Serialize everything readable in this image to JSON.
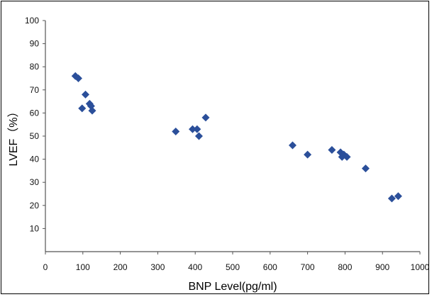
{
  "chart_data": {
    "type": "scatter",
    "xlabel": "BNP Level(pg/ml)",
    "ylabel": "LVEF（%）",
    "xlim": [
      0,
      1000
    ],
    "ylim": [
      0,
      100
    ],
    "x_ticks": [
      0,
      100,
      200,
      300,
      400,
      500,
      600,
      700,
      800,
      900,
      1000
    ],
    "y_ticks": [
      10,
      20,
      30,
      40,
      50,
      60,
      70,
      80,
      90,
      100
    ],
    "x_tick_labels": [
      "0",
      "100",
      "200",
      "300",
      "400",
      "500",
      "600",
      "700",
      "800",
      "900",
      "1000"
    ],
    "y_tick_labels": [
      "10",
      "20",
      "30",
      "40",
      "50",
      "60",
      "70",
      "80",
      "90",
      "100"
    ],
    "grid": false,
    "legend": "none",
    "marker": "diamond",
    "color": "#2b4f9a",
    "series": [
      {
        "points": [
          [
            80,
            76
          ],
          [
            88,
            75
          ],
          [
            98,
            62
          ],
          [
            107,
            68
          ],
          [
            118,
            64
          ],
          [
            122,
            63
          ],
          [
            125,
            61
          ],
          [
            348,
            52
          ],
          [
            393,
            53
          ],
          [
            405,
            53
          ],
          [
            410,
            50
          ],
          [
            428,
            58
          ],
          [
            660,
            46
          ],
          [
            700,
            42
          ],
          [
            765,
            44
          ],
          [
            788,
            43
          ],
          [
            792,
            41
          ],
          [
            797,
            42
          ],
          [
            805,
            41
          ],
          [
            855,
            36
          ],
          [
            925,
            23
          ],
          [
            942,
            24
          ]
        ]
      }
    ]
  }
}
